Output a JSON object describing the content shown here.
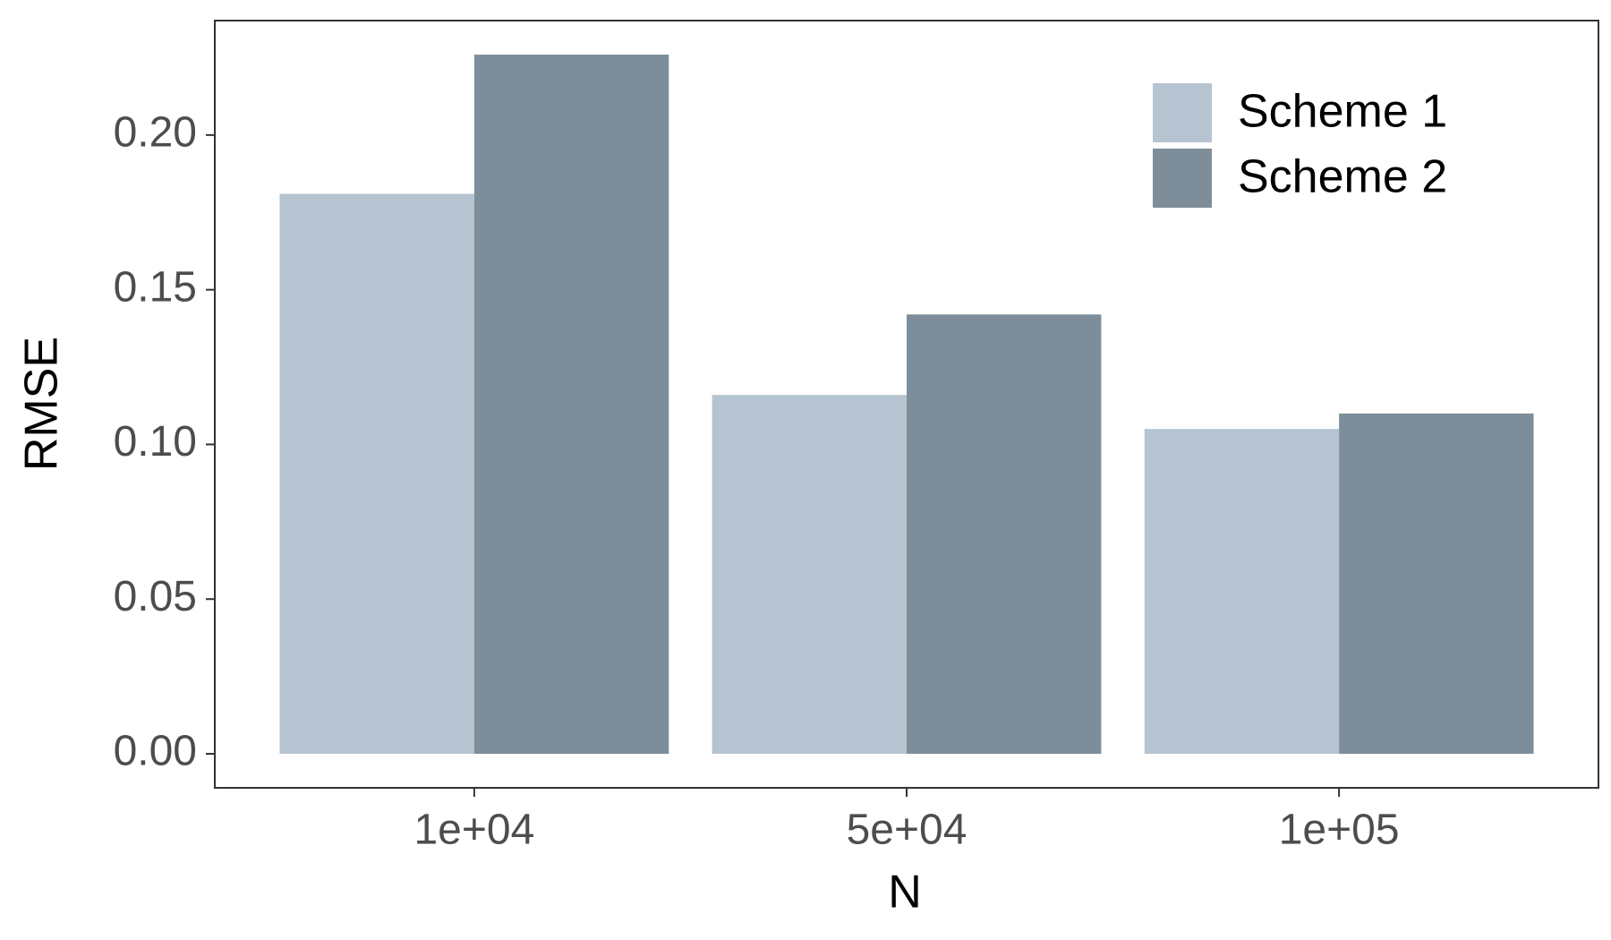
{
  "chart_data": {
    "type": "bar",
    "x_label": "N",
    "y_label": "RMSE",
    "categories": [
      "1e+04",
      "5e+04",
      "1e+05"
    ],
    "series": [
      {
        "name": "Scheme 1",
        "color": "#b5c4d0",
        "values": [
          0.181,
          0.116,
          0.105
        ]
      },
      {
        "name": "Scheme 2",
        "color": "#7d8e9a",
        "values": [
          0.226,
          0.142,
          0.11
        ]
      }
    ],
    "ylim": [
      -0.011,
      0.237
    ],
    "yticks": [
      {
        "value": 0,
        "label": "0.00"
      },
      {
        "value": 0.05,
        "label": "0.05"
      },
      {
        "value": 0.1,
        "label": "0.10"
      },
      {
        "value": 0.15,
        "label": "0.15"
      },
      {
        "value": 0.2,
        "label": "0.20"
      }
    ],
    "grid": false,
    "legend": "top-right"
  }
}
